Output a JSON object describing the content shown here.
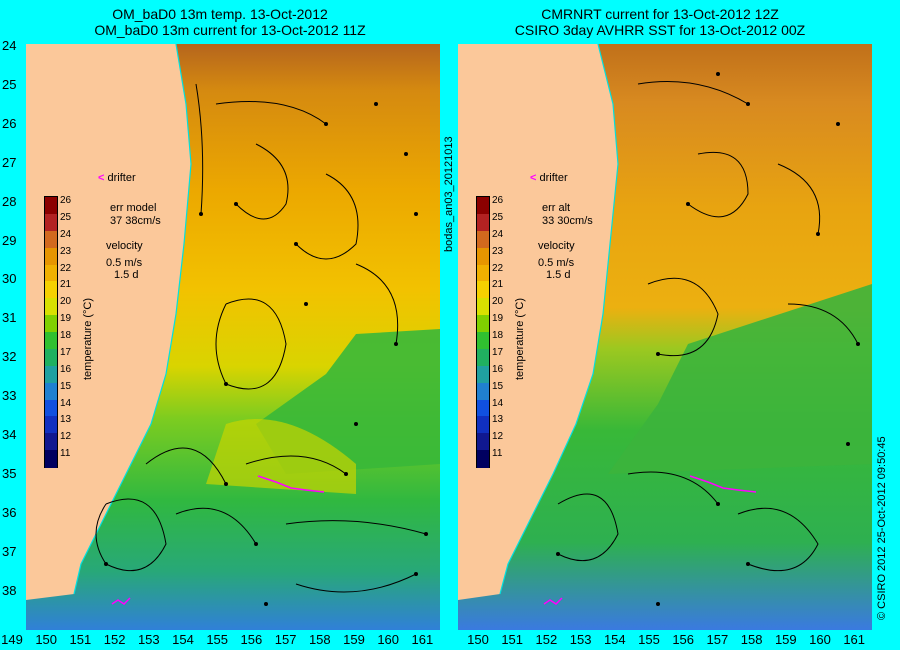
{
  "left_panel": {
    "title_line1": "OM_baD0 13m temp. 13-Oct-2012",
    "title_line2": "OM_baD0 13m current for 13-Oct-2012 11Z",
    "legend_drifter": "drifter",
    "err_label": "err model",
    "err_value": "37 38cm/s",
    "velocity_label": "velocity",
    "velocity_scale": "0.5 m/s",
    "velocity_time": "1.5 d"
  },
  "right_panel": {
    "title_line1": "CMRNRT current for 13-Oct-2012 12Z",
    "title_line2": "CSIRO 3day AVHRR SST for 13-Oct-2012 00Z",
    "legend_drifter": "drifter",
    "err_label": "err alt",
    "err_value": "33 30cm/s",
    "velocity_label": "velocity",
    "velocity_scale": "0.5 m/s",
    "velocity_time": "1.5 d"
  },
  "colorbar": {
    "title": "temperature (°C)",
    "ticks": [
      "26",
      "25",
      "24",
      "23",
      "22",
      "21",
      "20",
      "19",
      "18",
      "17",
      "16",
      "15",
      "14",
      "13",
      "12",
      "11"
    ],
    "colors": [
      "#8b0000",
      "#b22222",
      "#d2691e",
      "#e69500",
      "#f0b000",
      "#f5d000",
      "#d8e000",
      "#80d000",
      "#30c030",
      "#20b060",
      "#20a0a0",
      "#2080d0",
      "#1050e0",
      "#1030c0",
      "#101890",
      "#000060"
    ]
  },
  "y_ticks": [
    "24",
    "25",
    "26",
    "27",
    "28",
    "29",
    "30",
    "31",
    "32",
    "33",
    "34",
    "35",
    "36",
    "37",
    "38"
  ],
  "x_ticks_left": [
    "149",
    "150",
    "151",
    "152",
    "153",
    "154",
    "155",
    "156",
    "157",
    "158",
    "159",
    "160",
    "161"
  ],
  "x_ticks_right": [
    "150",
    "151",
    "152",
    "153",
    "154",
    "155",
    "156",
    "157",
    "158",
    "159",
    "160",
    "161"
  ],
  "side_label": "bodas_an03_20121013",
  "credit": "© CSIRO 2012  25-Oct-2012 09:50:45",
  "colors": {
    "background": "#00ffff",
    "land": "#fbc89a",
    "warm": "#e69500",
    "cool": "#30c030",
    "drifter": "#ff00ff",
    "coast": "#00e0e0"
  }
}
